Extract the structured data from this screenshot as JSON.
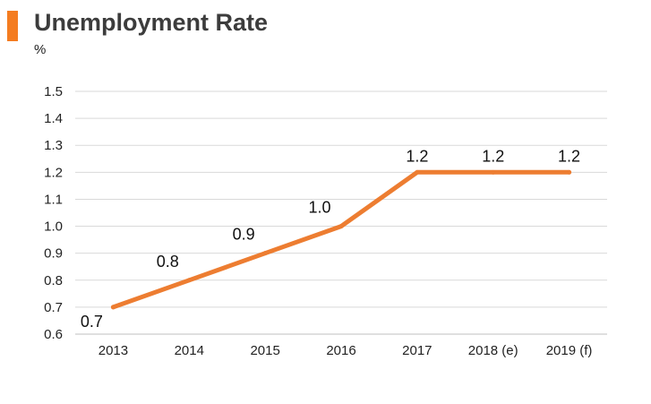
{
  "chart_data": {
    "type": "line",
    "title": "Unemployment Rate",
    "unit_label": "%",
    "categories": [
      "2013",
      "2014",
      "2015",
      "2016",
      "2017",
      "2018 (e)",
      "2019 (f)"
    ],
    "series": [
      {
        "values": [
          0.7,
          0.8,
          0.9,
          1.0,
          1.2,
          1.2,
          1.2
        ],
        "data_labels": [
          "0.7",
          "0.8",
          "0.9",
          "1.0",
          "1.2",
          "1.2",
          "1.2"
        ],
        "color": "#ed7d31"
      }
    ],
    "ylim": [
      0.6,
      1.5
    ],
    "yticks": [
      "0.6",
      "0.7",
      "0.8",
      "0.9",
      "1.0",
      "1.1",
      "1.2",
      "1.3",
      "1.4",
      "1.5"
    ],
    "grid": true,
    "colors": {
      "accent": "#f47c20",
      "line": "#ed7d31",
      "grid": "#d9d9d9",
      "title": "#3c3c3c"
    }
  }
}
